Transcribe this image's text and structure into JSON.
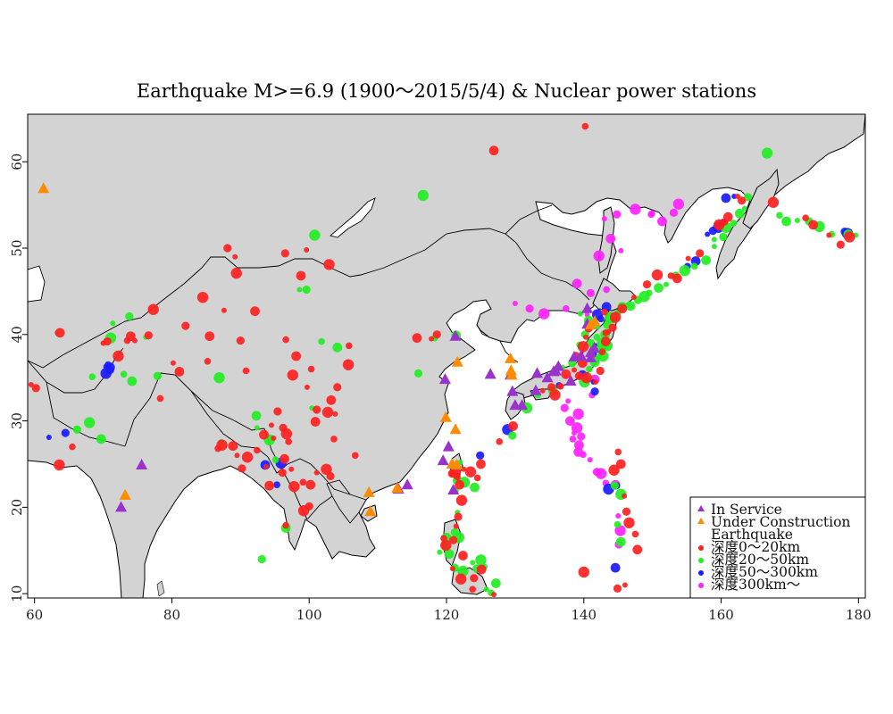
{
  "title": "Earthquake M>=6.9 (1900〜2015/5/4) & Nuclear power stations",
  "axes": {
    "x_range": [
      59,
      181
    ],
    "y_range": [
      9.5,
      65.5
    ],
    "x_ticks": [
      "60",
      "80",
      "100",
      "120",
      "140",
      "160",
      "180"
    ],
    "x_tick_values": [
      60,
      80,
      100,
      120,
      140,
      160,
      180
    ],
    "y_ticks": [
      "10",
      "20",
      "30",
      "40",
      "50",
      "60"
    ],
    "y_tick_values": [
      10,
      20,
      30,
      40,
      50,
      60
    ]
  },
  "colors": {
    "land": "#d3d3d3",
    "sea": "#ffffff",
    "border": "#000000",
    "in_service": "#9933cc",
    "under_construction": "#ff8c00",
    "depth_0_20": "#ff2020",
    "depth_20_50": "#22ee22",
    "depth_50_300": "#1a1aff",
    "depth_300": "#ff22ff"
  },
  "legend": {
    "in_service": "In Service",
    "under_construction": "Under Construction",
    "earthquake": "Earthquake",
    "depth_0_20": "深度0〜20km",
    "depth_20_50": "深度20〜50km",
    "depth_50_300": "深度50〜300km",
    "depth_300": "深度300km〜"
  },
  "stations": {
    "in_service": [
      [
        72.6,
        20.0
      ],
      [
        75.6,
        24.9
      ],
      [
        114.3,
        22.6
      ],
      [
        113.0,
        22.1
      ],
      [
        119.5,
        25.4
      ],
      [
        120.3,
        27.0
      ],
      [
        119.8,
        34.8
      ],
      [
        121.3,
        39.8
      ],
      [
        121.0,
        22.0
      ],
      [
        129.3,
        35.3
      ],
      [
        129.6,
        33.4
      ],
      [
        126.4,
        35.4
      ],
      [
        133.0,
        33.5
      ],
      [
        131.0,
        31.8
      ],
      [
        133.2,
        35.5
      ],
      [
        135.6,
        35.7
      ],
      [
        135.9,
        35.8
      ],
      [
        136.3,
        36.3
      ],
      [
        138.1,
        34.6
      ],
      [
        138.6,
        37.4
      ],
      [
        139.6,
        37.5
      ],
      [
        141.0,
        37.3
      ],
      [
        141.0,
        37.9
      ],
      [
        141.5,
        38.4
      ],
      [
        140.5,
        43.0
      ],
      [
        140.5,
        41.2
      ],
      [
        134.7,
        35.0
      ],
      [
        130.0,
        31.8
      ]
    ],
    "under_construction": [
      [
        61.3,
        56.9
      ],
      [
        73.2,
        21.4
      ],
      [
        108.7,
        21.7
      ],
      [
        108.9,
        19.5
      ],
      [
        112.8,
        22.2
      ],
      [
        119.9,
        30.4
      ],
      [
        120.8,
        25.0
      ],
      [
        121.3,
        29.0
      ],
      [
        121.6,
        36.8
      ],
      [
        129.3,
        37.2
      ],
      [
        129.4,
        35.8
      ],
      [
        129.5,
        35.3
      ],
      [
        141.6,
        41.5
      ],
      [
        141.0,
        41.1
      ],
      [
        121.5,
        24.9
      ]
    ]
  },
  "earthquakes": {
    "depth_0_20": [
      [
        59.5,
        34.2
      ],
      [
        60.2,
        33.8
      ],
      [
        63.6,
        24.9
      ],
      [
        65.5,
        27.0
      ],
      [
        63.7,
        40.2
      ],
      [
        70.0,
        39.0
      ],
      [
        70.6,
        39.2
      ],
      [
        72.2,
        37.5
      ],
      [
        73.5,
        39.3
      ],
      [
        74.0,
        39.8
      ],
      [
        74.6,
        39.3
      ],
      [
        76.6,
        39.9
      ],
      [
        77.3,
        42.9
      ],
      [
        78.3,
        32.6
      ],
      [
        81.1,
        35.7
      ],
      [
        80.2,
        36.7
      ],
      [
        82.0,
        41.0
      ],
      [
        84.5,
        44.3
      ],
      [
        85.2,
        36.9
      ],
      [
        85.5,
        39.8
      ],
      [
        87.6,
        42.8
      ],
      [
        88.1,
        50.0
      ],
      [
        89.4,
        47.1
      ],
      [
        90.8,
        35.8
      ],
      [
        92.1,
        42.7
      ],
      [
        89.2,
        49.0
      ],
      [
        90.0,
        39.3
      ],
      [
        87.3,
        27.2
      ],
      [
        86.7,
        26.8
      ],
      [
        88.9,
        27.1
      ],
      [
        89.5,
        26.0
      ],
      [
        90.2,
        24.5
      ],
      [
        91.0,
        25.8
      ],
      [
        92.4,
        26.6
      ],
      [
        93.4,
        28.4
      ],
      [
        94.8,
        28.0
      ],
      [
        96.2,
        29.2
      ],
      [
        96.7,
        28.5
      ],
      [
        97.0,
        27.6
      ],
      [
        96.4,
        25.6
      ],
      [
        97.4,
        24.4
      ],
      [
        96.1,
        24.0
      ],
      [
        97.8,
        22.4
      ],
      [
        99.1,
        22.9
      ],
      [
        100.2,
        22.6
      ],
      [
        101.1,
        24.0
      ],
      [
        100.0,
        20.1
      ],
      [
        99.2,
        19.6
      ],
      [
        96.6,
        17.9
      ],
      [
        94.2,
        22.5
      ],
      [
        93.7,
        24.7
      ],
      [
        95.4,
        31.1
      ],
      [
        97.6,
        35.3
      ],
      [
        96.6,
        39.4
      ],
      [
        98.1,
        37.5
      ],
      [
        99.7,
        33.9
      ],
      [
        101.1,
        31.3
      ],
      [
        102.7,
        31.0
      ],
      [
        103.6,
        27.9
      ],
      [
        103.2,
        32.4
      ],
      [
        103.8,
        30.8
      ],
      [
        104.1,
        33.9
      ],
      [
        105.7,
        36.5
      ],
      [
        105.8,
        38.7
      ],
      [
        98.8,
        46.8
      ],
      [
        99.6,
        49.8
      ],
      [
        96.5,
        49.4
      ],
      [
        102.9,
        48.1
      ],
      [
        100.3,
        36.0
      ],
      [
        100.9,
        29.9
      ],
      [
        94.5,
        29.5
      ],
      [
        103.1,
        23.6
      ],
      [
        102.5,
        24.4
      ],
      [
        106.7,
        26.0
      ],
      [
        115.7,
        39.6
      ],
      [
        117.8,
        39.5
      ],
      [
        118.6,
        40.0
      ],
      [
        121.3,
        24.0
      ],
      [
        121.6,
        23.5
      ],
      [
        121.9,
        22.6
      ],
      [
        122.5,
        24.4
      ],
      [
        120.8,
        23.9
      ],
      [
        123.5,
        24.1
      ],
      [
        124.5,
        23.4
      ],
      [
        125.0,
        25.0
      ],
      [
        121.4,
        17.8
      ],
      [
        121.0,
        16.2
      ],
      [
        119.9,
        15.6
      ],
      [
        119.6,
        16.4
      ],
      [
        122.4,
        14.4
      ],
      [
        120.9,
        12.9
      ],
      [
        124.0,
        11.8
      ],
      [
        122.1,
        11.7
      ],
      [
        123.8,
        10.5
      ],
      [
        125.1,
        12.8
      ],
      [
        126.9,
        9.9
      ],
      [
        121.7,
        18.9
      ],
      [
        122.2,
        20.8
      ],
      [
        127.7,
        27.6
      ],
      [
        129.7,
        29.4
      ],
      [
        134.0,
        33.5
      ],
      [
        135.3,
        33.9
      ],
      [
        135.8,
        33.0
      ],
      [
        136.6,
        34.0
      ],
      [
        137.4,
        35.4
      ],
      [
        138.6,
        35.9
      ],
      [
        139.3,
        35.2
      ],
      [
        140.4,
        35.0
      ],
      [
        142.7,
        38.0
      ],
      [
        143.2,
        39.2
      ],
      [
        143.6,
        40.3
      ],
      [
        144.2,
        40.8
      ],
      [
        144.6,
        42.0
      ],
      [
        143.0,
        42.6
      ],
      [
        145.6,
        43.0
      ],
      [
        147.3,
        44.3
      ],
      [
        149.2,
        45.8
      ],
      [
        150.7,
        46.9
      ],
      [
        152.7,
        46.8
      ],
      [
        153.6,
        46.5
      ],
      [
        155.2,
        48.8
      ],
      [
        156.9,
        49.4
      ],
      [
        159.7,
        52.7
      ],
      [
        160.5,
        53.0
      ],
      [
        161.0,
        53.6
      ],
      [
        162.4,
        56.0
      ],
      [
        163.0,
        55.5
      ],
      [
        167.6,
        55.3
      ],
      [
        172.3,
        53.5
      ],
      [
        173.4,
        52.7
      ],
      [
        175.7,
        51.5
      ],
      [
        177.4,
        50.4
      ],
      [
        178.7,
        51.3
      ],
      [
        140.2,
        64.1
      ],
      [
        126.9,
        61.3
      ],
      [
        140.3,
        39.7
      ],
      [
        140.7,
        40.7
      ],
      [
        139.9,
        38.6
      ],
      [
        138.9,
        37.6
      ],
      [
        139.8,
        36.7
      ],
      [
        141.7,
        34.5
      ],
      [
        142.4,
        35.8
      ],
      [
        144.4,
        24.3
      ],
      [
        145.0,
        26.4
      ],
      [
        145.4,
        25.0
      ],
      [
        145.9,
        21.3
      ],
      [
        146.2,
        19.5
      ],
      [
        146.6,
        18.2
      ],
      [
        147.5,
        16.9
      ],
      [
        147.8,
        15.1
      ],
      [
        146.0,
        11.0
      ],
      [
        144.9,
        10.6
      ],
      [
        140.0,
        12.5
      ],
      [
        143.2,
        40.2
      ]
    ],
    "depth_20_50": [
      [
        63.3,
        40.2
      ],
      [
        66.2,
        29.0
      ],
      [
        68.0,
        29.8
      ],
      [
        68.4,
        35.1
      ],
      [
        69.7,
        27.9
      ],
      [
        71.4,
        41.3
      ],
      [
        73.8,
        42.1
      ],
      [
        71.1,
        39.6
      ],
      [
        73.0,
        35.4
      ],
      [
        74.2,
        34.6
      ],
      [
        76.2,
        39.7
      ],
      [
        77.9,
        35.2
      ],
      [
        86.9,
        35.0
      ],
      [
        87.2,
        27.5
      ],
      [
        92.3,
        30.6
      ],
      [
        92.4,
        29.2
      ],
      [
        93.1,
        14.0
      ],
      [
        94.2,
        27.8
      ],
      [
        95.1,
        25.5
      ],
      [
        96.6,
        17.6
      ],
      [
        98.6,
        45.2
      ],
      [
        99.6,
        45.2
      ],
      [
        100.8,
        51.5
      ],
      [
        101.8,
        39.2
      ],
      [
        104.1,
        38.5
      ],
      [
        100.4,
        31.5
      ],
      [
        115.9,
        35.5
      ],
      [
        116.6,
        56.1
      ],
      [
        118.3,
        39.6
      ],
      [
        121.4,
        39.9
      ],
      [
        122.0,
        25.2
      ],
      [
        121.5,
        23.1
      ],
      [
        122.6,
        22.9
      ],
      [
        121.3,
        21.9
      ],
      [
        124.1,
        22.3
      ],
      [
        121.6,
        19.4
      ],
      [
        121.2,
        17.1
      ],
      [
        121.8,
        16.5
      ],
      [
        119.7,
        15.6
      ],
      [
        120.4,
        14.6
      ],
      [
        123.8,
        13.6
      ],
      [
        124.4,
        12.9
      ],
      [
        122.4,
        12.6
      ],
      [
        125.5,
        13.1
      ],
      [
        127.2,
        11.2
      ],
      [
        125.8,
        10.5
      ],
      [
        129.6,
        28.3
      ],
      [
        131.7,
        31.5
      ],
      [
        133.3,
        33.0
      ],
      [
        135.5,
        33.5
      ],
      [
        136.9,
        36.2
      ],
      [
        138.3,
        36.7
      ],
      [
        140.1,
        34.5
      ],
      [
        140.8,
        36.0
      ],
      [
        141.6,
        36.8
      ],
      [
        142.1,
        37.4
      ],
      [
        142.3,
        38.3
      ],
      [
        142.7,
        39.0
      ],
      [
        141.9,
        39.7
      ],
      [
        143.1,
        40.0
      ],
      [
        142.0,
        40.9
      ],
      [
        143.4,
        41.1
      ],
      [
        143.8,
        42.0
      ],
      [
        144.9,
        42.5
      ],
      [
        145.6,
        43.2
      ],
      [
        146.4,
        43.4
      ],
      [
        147.9,
        44.0
      ],
      [
        148.8,
        44.4
      ],
      [
        149.5,
        44.8
      ],
      [
        150.9,
        45.4
      ],
      [
        152.0,
        45.8
      ],
      [
        153.4,
        46.8
      ],
      [
        154.7,
        47.4
      ],
      [
        156.1,
        47.9
      ],
      [
        157.8,
        48.6
      ],
      [
        159.0,
        50.2
      ],
      [
        160.3,
        51.3
      ],
      [
        160.7,
        52.4
      ],
      [
        161.8,
        52.9
      ],
      [
        162.7,
        54.0
      ],
      [
        163.4,
        54.6
      ],
      [
        163.9,
        55.9
      ],
      [
        166.7,
        61.0
      ],
      [
        168.5,
        53.8
      ],
      [
        169.5,
        53.1
      ],
      [
        171.1,
        53.2
      ],
      [
        172.8,
        53.1
      ],
      [
        174.3,
        52.5
      ],
      [
        176.1,
        51.6
      ],
      [
        178.5,
        51.6
      ],
      [
        179.6,
        51.5
      ],
      [
        144.5,
        22.5
      ],
      [
        145.4,
        21.5
      ],
      [
        144.9,
        18.0
      ],
      [
        145.4,
        16.0
      ],
      [
        141.7,
        38.4
      ],
      [
        141.0,
        39.0
      ],
      [
        142.8,
        37.5
      ],
      [
        139.4,
        38.8
      ],
      [
        140.7,
        41.6
      ],
      [
        139.5,
        42.4
      ],
      [
        140.2,
        40.0
      ],
      [
        143.4,
        38.7
      ],
      [
        144.2,
        41.7
      ],
      [
        146.8,
        43.3
      ],
      [
        159.0,
        51.0
      ],
      [
        121.2,
        13.0
      ],
      [
        125.0,
        13.9
      ],
      [
        126.5,
        10.1
      ],
      [
        120.0,
        16.5
      ],
      [
        119.0,
        14.8
      ]
    ],
    "depth_50_300": [
      [
        62.1,
        28.1
      ],
      [
        64.5,
        28.6
      ],
      [
        70.4,
        35.5
      ],
      [
        70.7,
        36.5
      ],
      [
        71.0,
        36.2
      ],
      [
        70.4,
        36.3
      ],
      [
        71.0,
        35.9
      ],
      [
        95.9,
        25.1
      ],
      [
        95.3,
        22.6
      ],
      [
        93.6,
        24.9
      ],
      [
        121.5,
        23.8
      ],
      [
        124.9,
        26.0
      ],
      [
        128.9,
        29.0
      ],
      [
        136.4,
        34.1
      ],
      [
        139.8,
        35.3
      ],
      [
        141.4,
        34.5
      ],
      [
        141.6,
        33.4
      ],
      [
        142.0,
        42.3
      ],
      [
        142.5,
        41.8
      ],
      [
        143.3,
        43.2
      ],
      [
        141.7,
        38.7
      ],
      [
        141.3,
        37.8
      ],
      [
        143.6,
        22.1
      ],
      [
        144.8,
        22.5
      ],
      [
        144.6,
        13.0
      ],
      [
        158.0,
        51.6
      ],
      [
        158.8,
        52.0
      ],
      [
        159.6,
        52.4
      ],
      [
        160.3,
        53.0
      ],
      [
        160.7,
        55.8
      ],
      [
        161.9,
        56.0
      ],
      [
        178.0,
        51.9
      ],
      [
        178.4,
        51.7
      ],
      [
        155.1,
        47.9
      ],
      [
        156.3,
        48.5
      ]
    ],
    "depth_300": [
      [
        130.0,
        43.6
      ],
      [
        132.1,
        43.0
      ],
      [
        134.2,
        42.4
      ],
      [
        137.4,
        43.0
      ],
      [
        139.0,
        45.9
      ],
      [
        140.5,
        42.3
      ],
      [
        141.0,
        44.8
      ],
      [
        142.2,
        49.1
      ],
      [
        143.3,
        45.2
      ],
      [
        143.9,
        51.1
      ],
      [
        145.4,
        49.7
      ],
      [
        153.1,
        54.1
      ],
      [
        153.8,
        55.1
      ],
      [
        149.8,
        53.9
      ],
      [
        151.4,
        53.1
      ],
      [
        143.0,
        53.4
      ],
      [
        144.8,
        53.9
      ],
      [
        147.5,
        54.5
      ],
      [
        149.9,
        54.0
      ],
      [
        138.0,
        30.0
      ],
      [
        138.6,
        28.6
      ],
      [
        139.6,
        28.2
      ],
      [
        139.0,
        29.2
      ],
      [
        138.4,
        27.9
      ],
      [
        139.3,
        27.2
      ],
      [
        140.9,
        25.5
      ],
      [
        141.9,
        24.1
      ],
      [
        142.5,
        23.9
      ],
      [
        143.2,
        22.8
      ],
      [
        144.6,
        22.6
      ],
      [
        145.0,
        19.0
      ],
      [
        145.1,
        15.7
      ],
      [
        145.3,
        17.3
      ],
      [
        139.9,
        26.1
      ],
      [
        139.2,
        26.4
      ],
      [
        137.7,
        32.3
      ],
      [
        137.2,
        31.5
      ],
      [
        139.2,
        30.8
      ],
      [
        141.2,
        33.0
      ],
      [
        141.6,
        34.8
      ]
    ]
  }
}
